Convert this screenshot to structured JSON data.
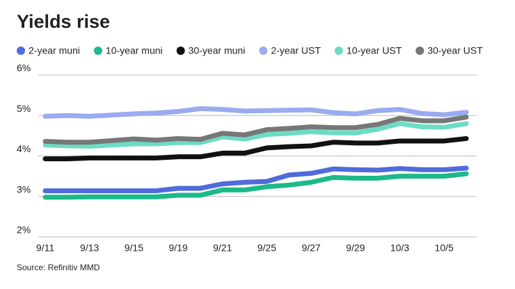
{
  "chart_data": {
    "type": "line",
    "title": "Yields rise",
    "source": "Source: Refinitiv MMD",
    "categories": [
      "9/11",
      null,
      "9/13",
      null,
      "9/15",
      null,
      "9/19",
      null,
      "9/21",
      null,
      "9/25",
      null,
      "9/27",
      null,
      "9/29",
      null,
      "10/3",
      null,
      "10/5",
      null
    ],
    "series": [
      {
        "name": "2-year muni",
        "color": "#4f6bdc",
        "values": [
          3.14,
          3.14,
          3.14,
          3.14,
          3.14,
          3.14,
          3.2,
          3.2,
          3.31,
          3.35,
          3.37,
          3.53,
          3.57,
          3.68,
          3.66,
          3.65,
          3.69,
          3.66,
          3.66,
          3.7
        ]
      },
      {
        "name": "10-year muni",
        "color": "#1cb98a",
        "values": [
          2.98,
          2.98,
          2.99,
          2.99,
          2.99,
          2.99,
          3.03,
          3.03,
          3.16,
          3.16,
          3.24,
          3.28,
          3.35,
          3.47,
          3.45,
          3.45,
          3.5,
          3.5,
          3.5,
          3.56
        ]
      },
      {
        "name": "30-year muni",
        "color": "#111111",
        "values": [
          3.93,
          3.93,
          3.95,
          3.95,
          3.95,
          3.95,
          3.98,
          3.98,
          4.07,
          4.07,
          4.2,
          4.23,
          4.25,
          4.34,
          4.32,
          4.32,
          4.37,
          4.37,
          4.37,
          4.43
        ]
      },
      {
        "name": "2-year UST",
        "color": "#9aabf0",
        "values": [
          4.98,
          5.0,
          4.98,
          5.01,
          5.04,
          5.06,
          5.1,
          5.17,
          5.15,
          5.11,
          5.12,
          5.13,
          5.14,
          5.07,
          5.04,
          5.12,
          5.15,
          5.05,
          5.02,
          5.08
        ]
      },
      {
        "name": "10-year UST",
        "color": "#6ddcc4",
        "values": [
          4.27,
          4.25,
          4.24,
          4.27,
          4.3,
          4.3,
          4.33,
          4.33,
          4.47,
          4.42,
          4.53,
          4.56,
          4.6,
          4.57,
          4.57,
          4.66,
          4.8,
          4.72,
          4.71,
          4.8
        ]
      },
      {
        "name": "30-year UST",
        "color": "#777777",
        "values": [
          4.36,
          4.34,
          4.34,
          4.38,
          4.42,
          4.39,
          4.43,
          4.41,
          4.56,
          4.52,
          4.65,
          4.68,
          4.72,
          4.7,
          4.7,
          4.78,
          4.93,
          4.87,
          4.87,
          4.96
        ]
      }
    ],
    "ylim": [
      2,
      6
    ],
    "yticks": [
      {
        "value": 2,
        "label": "2%"
      },
      {
        "value": 3,
        "label": "3%"
      },
      {
        "value": 4,
        "label": "4%"
      },
      {
        "value": 5,
        "label": "5%"
      },
      {
        "value": 6,
        "label": "6%"
      }
    ],
    "grid": true
  }
}
